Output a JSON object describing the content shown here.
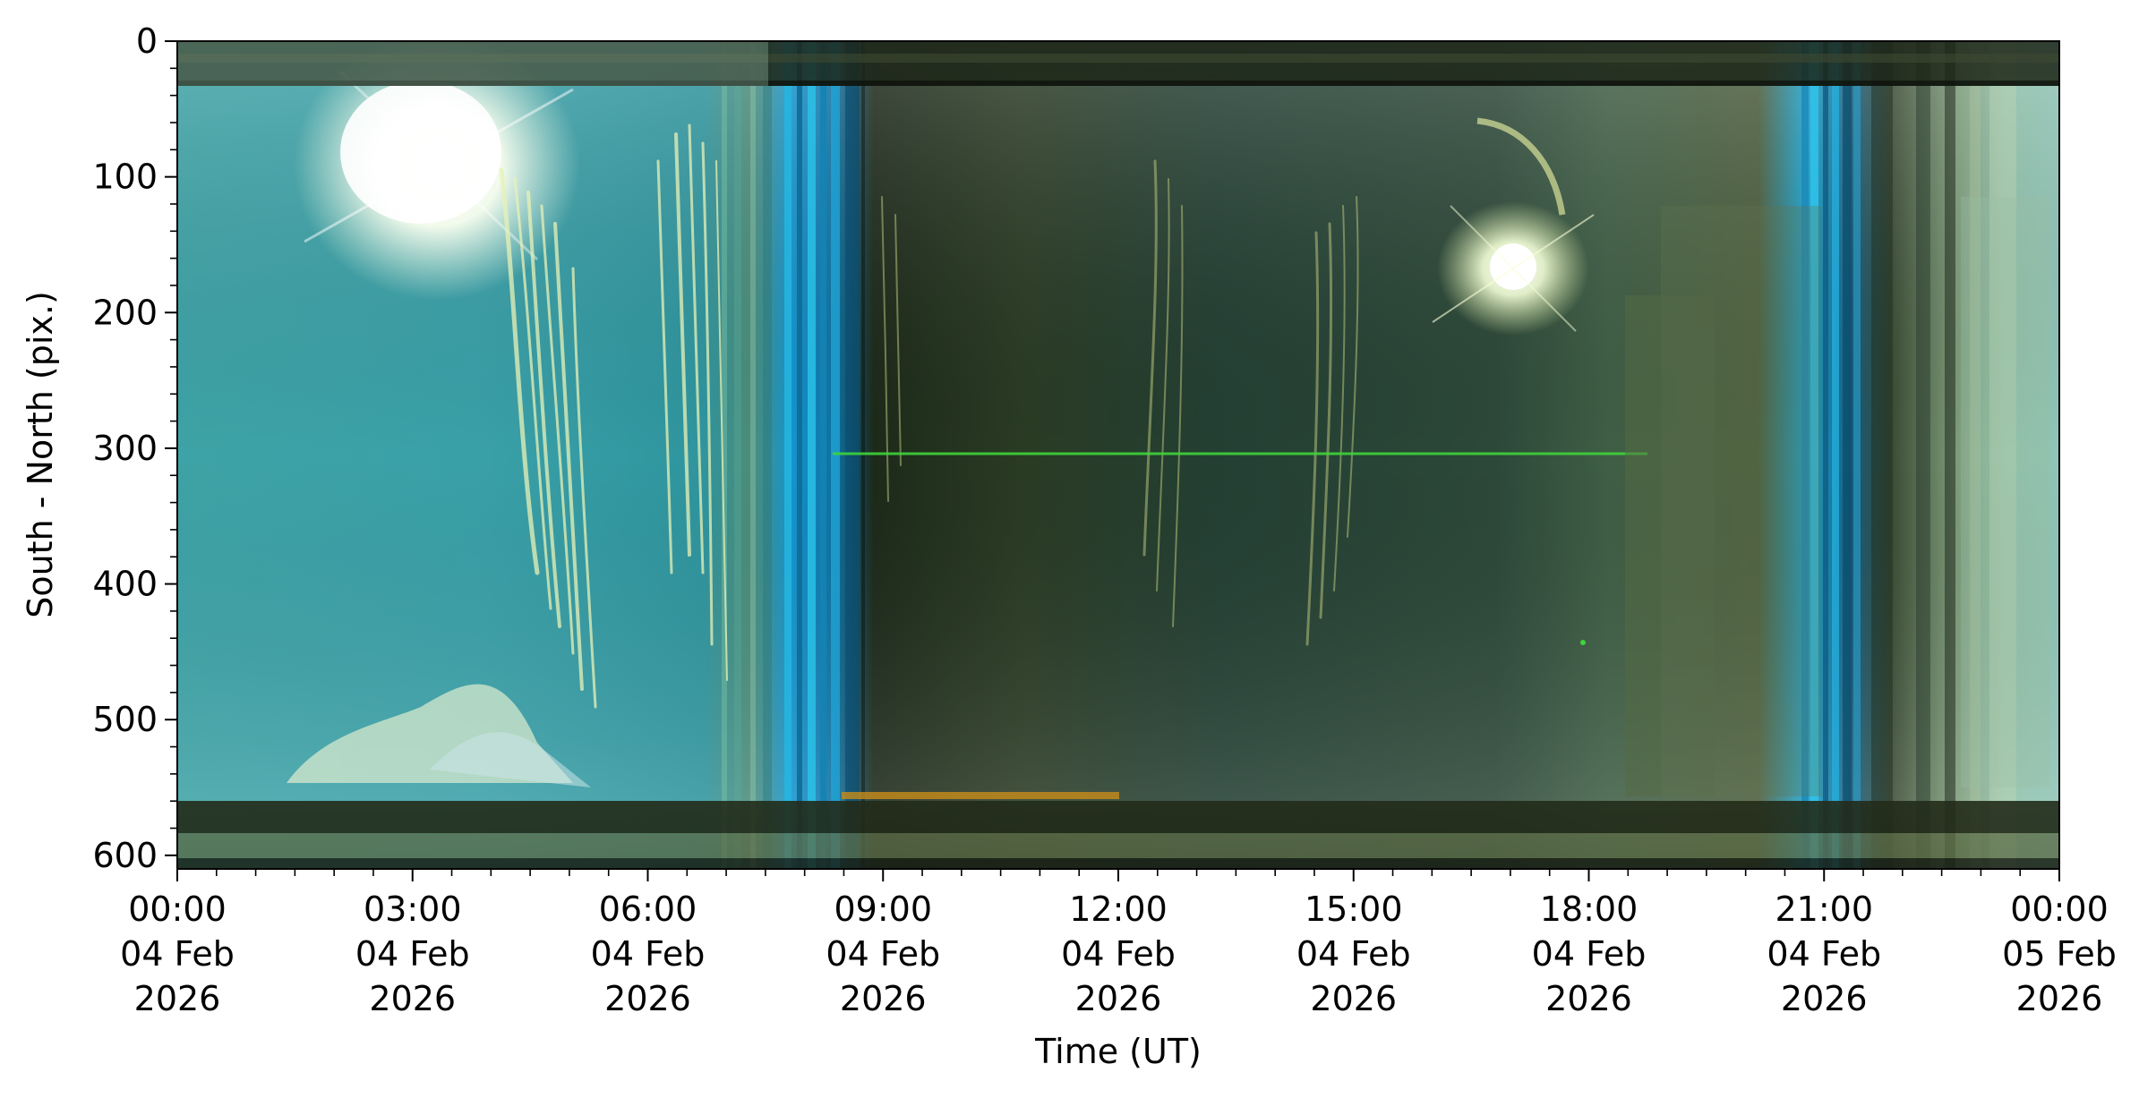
{
  "chart_data": {
    "type": "heatmap",
    "title": "",
    "xlabel": "Time (UT)",
    "ylabel": "South - North (pix.)",
    "xlim": [
      "2026-02-04 00:00",
      "2026-02-05 00:00"
    ],
    "ylim": [
      610,
      0
    ],
    "y_inverted": true,
    "grid": false,
    "x_tick_labels": [
      [
        "00:00",
        "04 Feb",
        "2026"
      ],
      [
        "03:00",
        "04 Feb",
        "2026"
      ],
      [
        "06:00",
        "04 Feb",
        "2026"
      ],
      [
        "09:00",
        "04 Feb",
        "2026"
      ],
      [
        "12:00",
        "04 Feb",
        "2026"
      ],
      [
        "15:00",
        "04 Feb",
        "2026"
      ],
      [
        "18:00",
        "04 Feb",
        "2026"
      ],
      [
        "21:00",
        "04 Feb",
        "2026"
      ],
      [
        "00:00",
        "05 Feb",
        "2026"
      ]
    ],
    "x_tick_hours": [
      0,
      3,
      6,
      9,
      12,
      15,
      18,
      21,
      24
    ],
    "y_ticks": [
      0,
      100,
      200,
      300,
      400,
      500,
      600
    ],
    "y_tick_labels": [
      "0",
      "100",
      "200",
      "300",
      "400",
      "500",
      "600"
    ],
    "colors": {
      "day_sky": "#4aa5a2",
      "night_sky": "#203a2e",
      "twilight_blue": "#1aa8d6",
      "sun_glare": "#fffff0",
      "cloud_streaks": "#dfe6a0",
      "top_band": "#1c2418",
      "bottom_band": "#2a3020",
      "green_line": "#39d13a"
    }
  }
}
